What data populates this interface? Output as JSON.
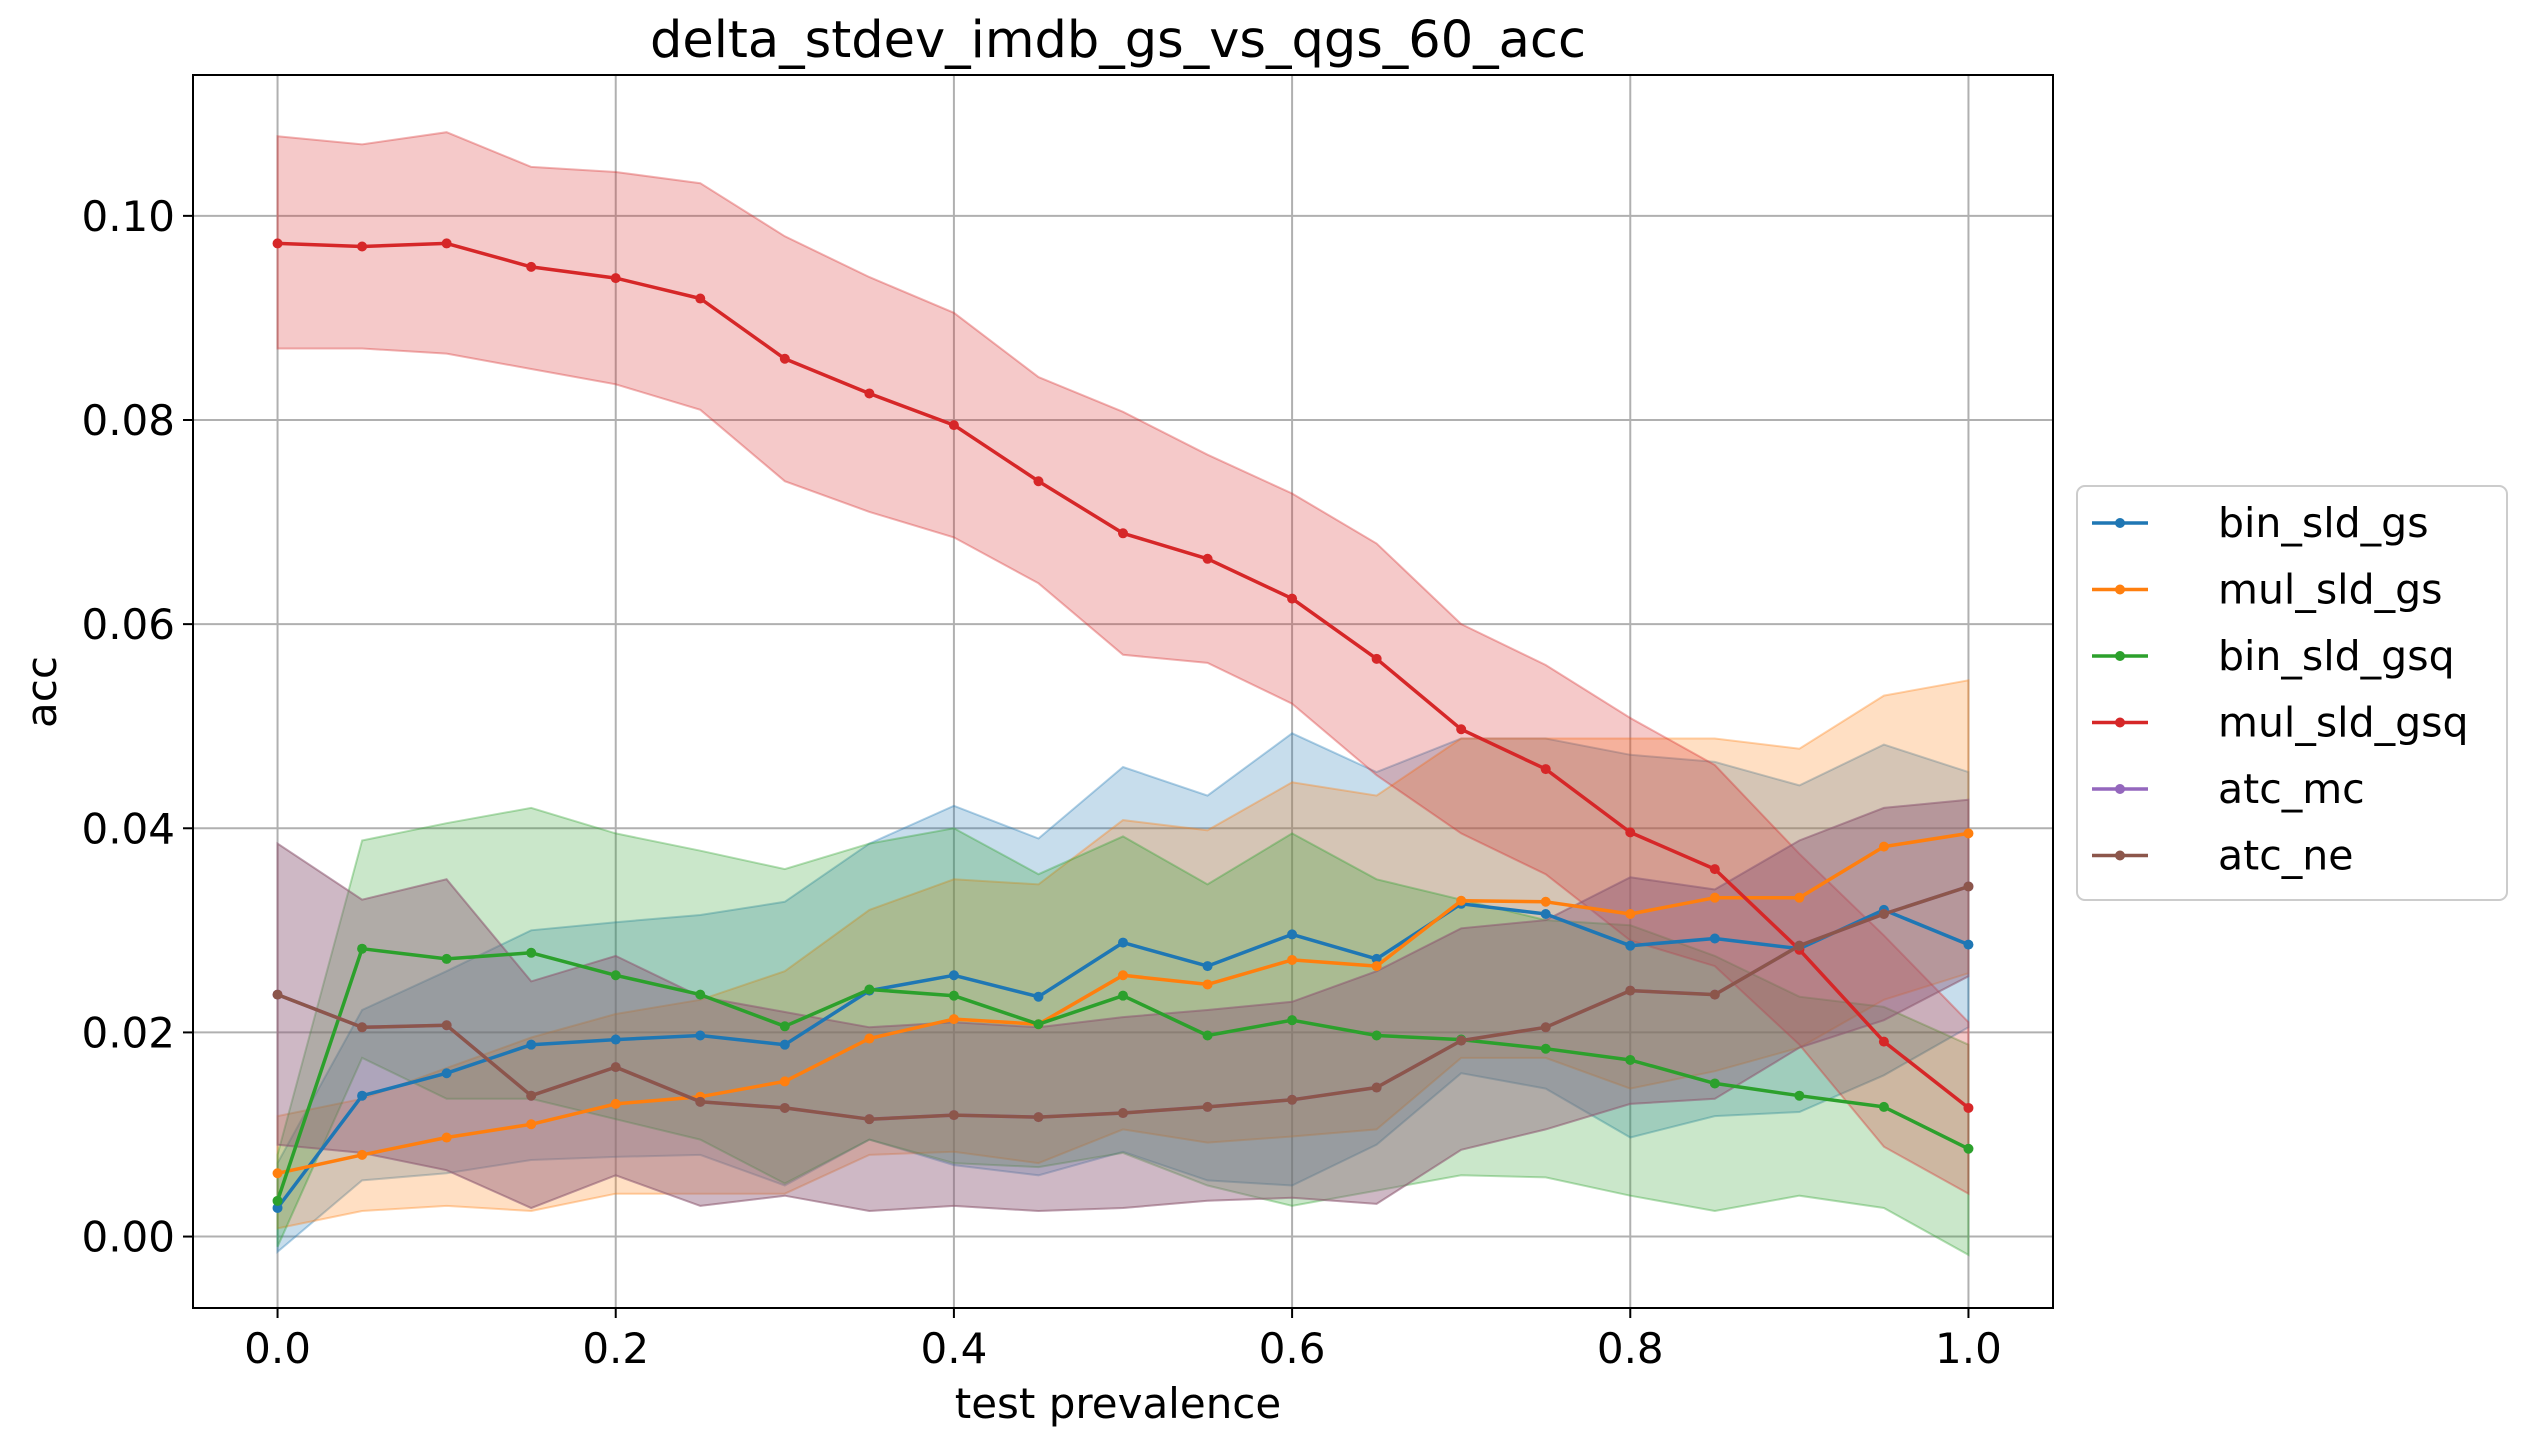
{
  "chart_data": {
    "type": "line",
    "title": "delta_stdev_imdb_gs_vs_qgs_60_acc",
    "xlabel": "test prevalence",
    "ylabel": "acc",
    "xlim": [
      -0.05,
      1.05
    ],
    "ylim": [
      -0.007,
      0.1138
    ],
    "xticks": [
      0.0,
      0.2,
      0.4,
      0.6,
      0.8,
      1.0
    ],
    "xtick_labels": [
      "0.0",
      "0.2",
      "0.4",
      "0.6",
      "0.8",
      "1.0"
    ],
    "yticks": [
      0.0,
      0.02,
      0.04,
      0.06,
      0.08,
      0.1
    ],
    "ytick_labels": [
      "0.00",
      "0.02",
      "0.04",
      "0.06",
      "0.08",
      "0.10"
    ],
    "grid": true,
    "legend_position": "center-right-outside",
    "x": [
      0.0,
      0.05,
      0.1,
      0.15,
      0.2,
      0.25,
      0.3,
      0.35,
      0.4,
      0.45,
      0.5,
      0.55,
      0.6,
      0.65,
      0.7,
      0.75,
      0.8,
      0.85,
      0.9,
      0.95,
      1.0
    ],
    "series": [
      {
        "name": "bin_sld_gs",
        "color": "#1f77b4",
        "values": [
          0.0028,
          0.0138,
          0.016,
          0.0188,
          0.0193,
          0.0197,
          0.0188,
          0.0241,
          0.0256,
          0.0235,
          0.0288,
          0.0265,
          0.0296,
          0.0272,
          0.0326,
          0.0316,
          0.0285,
          0.0292,
          0.0282,
          0.032,
          0.0286
        ],
        "lower": [
          -0.0015,
          0.0055,
          0.0062,
          0.0075,
          0.0078,
          0.008,
          0.005,
          0.0095,
          0.007,
          0.006,
          0.0083,
          0.0055,
          0.005,
          0.009,
          0.016,
          0.0145,
          0.0097,
          0.0118,
          0.0122,
          0.0158,
          0.0205
        ],
        "upper": [
          0.0072,
          0.0222,
          0.026,
          0.03,
          0.0308,
          0.0315,
          0.0328,
          0.0385,
          0.0422,
          0.039,
          0.046,
          0.0432,
          0.0493,
          0.0455,
          0.0488,
          0.0488,
          0.0472,
          0.0465,
          0.0442,
          0.0482,
          0.0455
        ]
      },
      {
        "name": "mul_sld_gs",
        "color": "#ff7f0e",
        "values": [
          0.0062,
          0.008,
          0.0097,
          0.011,
          0.013,
          0.0137,
          0.0152,
          0.0194,
          0.0213,
          0.0208,
          0.0256,
          0.0247,
          0.0271,
          0.0265,
          0.0329,
          0.0328,
          0.0316,
          0.0332,
          0.0332,
          0.0382,
          0.0395
        ],
        "lower": [
          0.0008,
          0.0025,
          0.003,
          0.0025,
          0.0042,
          0.0042,
          0.0042,
          0.008,
          0.0083,
          0.0072,
          0.0105,
          0.0092,
          0.0098,
          0.0105,
          0.0175,
          0.0175,
          0.0145,
          0.0162,
          0.0185,
          0.0232,
          0.0258
        ],
        "upper": [
          0.0118,
          0.0135,
          0.0165,
          0.0195,
          0.0218,
          0.0232,
          0.026,
          0.032,
          0.035,
          0.0345,
          0.0408,
          0.0398,
          0.0445,
          0.0432,
          0.0488,
          0.0488,
          0.0488,
          0.0488,
          0.0478,
          0.053,
          0.0545
        ]
      },
      {
        "name": "bin_sld_gsq",
        "color": "#2ca02c",
        "values": [
          0.0035,
          0.0282,
          0.0272,
          0.0278,
          0.0256,
          0.0237,
          0.0206,
          0.0242,
          0.0236,
          0.0208,
          0.0236,
          0.0197,
          0.0212,
          0.0197,
          0.0193,
          0.0184,
          0.0173,
          0.015,
          0.0138,
          0.0127,
          0.0086
        ],
        "lower": [
          -0.001,
          0.0175,
          0.0135,
          0.0135,
          0.0115,
          0.0095,
          0.0052,
          0.0095,
          0.0072,
          0.0068,
          0.0082,
          0.005,
          0.003,
          0.0045,
          0.006,
          0.0058,
          0.004,
          0.0025,
          0.004,
          0.0028,
          -0.0018
        ],
        "upper": [
          0.008,
          0.0388,
          0.0405,
          0.042,
          0.0395,
          0.0378,
          0.036,
          0.0385,
          0.04,
          0.0355,
          0.0392,
          0.0345,
          0.0395,
          0.035,
          0.033,
          0.031,
          0.0305,
          0.0275,
          0.0235,
          0.0225,
          0.0188
        ]
      },
      {
        "name": "mul_sld_gsq",
        "color": "#d62728",
        "values": [
          0.0973,
          0.097,
          0.0973,
          0.095,
          0.0939,
          0.0919,
          0.086,
          0.0826,
          0.0795,
          0.074,
          0.0689,
          0.0664,
          0.0625,
          0.0566,
          0.0497,
          0.0458,
          0.0396,
          0.036,
          0.0281,
          0.0191,
          0.0126
        ],
        "lower": [
          0.087,
          0.087,
          0.0865,
          0.085,
          0.0835,
          0.081,
          0.074,
          0.071,
          0.0685,
          0.064,
          0.057,
          0.0562,
          0.0522,
          0.0452,
          0.0395,
          0.0355,
          0.029,
          0.0265,
          0.0188,
          0.0088,
          0.0042
        ],
        "upper": [
          0.1078,
          0.107,
          0.1082,
          0.1048,
          0.1043,
          0.1032,
          0.098,
          0.094,
          0.0905,
          0.0842,
          0.0808,
          0.0766,
          0.0728,
          0.0679,
          0.06,
          0.056,
          0.0508,
          0.0462,
          0.0375,
          0.0295,
          0.021
        ]
      },
      {
        "name": "atc_mc",
        "color": "#9467bd",
        "values": [
          0.0237,
          0.0205,
          0.0207,
          0.0138,
          0.0166,
          0.0132,
          0.0126,
          0.0115,
          0.0119,
          0.0117,
          0.0121,
          0.0127,
          0.0134,
          0.0146,
          0.0192,
          0.0205,
          0.0241,
          0.0237,
          0.0285,
          0.0316,
          0.0343
        ],
        "lower": [
          0.009,
          0.0082,
          0.0065,
          0.0028,
          0.006,
          0.003,
          0.004,
          0.0025,
          0.003,
          0.0025,
          0.0028,
          0.0035,
          0.0038,
          0.0032,
          0.0085,
          0.0105,
          0.013,
          0.0135,
          0.0185,
          0.0212,
          0.0255
        ],
        "upper": [
          0.0385,
          0.033,
          0.035,
          0.025,
          0.0275,
          0.0235,
          0.022,
          0.0205,
          0.021,
          0.0205,
          0.0215,
          0.0222,
          0.023,
          0.026,
          0.0302,
          0.031,
          0.0352,
          0.034,
          0.0388,
          0.042,
          0.0428
        ]
      },
      {
        "name": "atc_ne",
        "color": "#8c564b",
        "values": [
          0.0237,
          0.0205,
          0.0207,
          0.0138,
          0.0166,
          0.0132,
          0.0126,
          0.0115,
          0.0119,
          0.0117,
          0.0121,
          0.0127,
          0.0134,
          0.0146,
          0.0192,
          0.0205,
          0.0241,
          0.0237,
          0.0285,
          0.0316,
          0.0343
        ],
        "lower": [
          0.009,
          0.0082,
          0.0065,
          0.0028,
          0.006,
          0.003,
          0.004,
          0.0025,
          0.003,
          0.0025,
          0.0028,
          0.0035,
          0.0038,
          0.0032,
          0.0085,
          0.0105,
          0.013,
          0.0135,
          0.0185,
          0.0212,
          0.0255
        ],
        "upper": [
          0.0385,
          0.033,
          0.035,
          0.025,
          0.0275,
          0.0235,
          0.022,
          0.0205,
          0.021,
          0.0205,
          0.0215,
          0.0222,
          0.023,
          0.026,
          0.0302,
          0.031,
          0.0352,
          0.034,
          0.0388,
          0.042,
          0.0428
        ]
      }
    ]
  }
}
